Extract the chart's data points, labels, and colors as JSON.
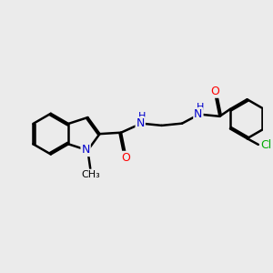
{
  "bg_color": "#ebebeb",
  "bond_color": "#000000",
  "N_color": "#0000cc",
  "O_color": "#ff0000",
  "Cl_color": "#00aa00",
  "bond_width": 1.8,
  "dbo": 0.055,
  "font_size": 8.5,
  "figsize": [
    3.0,
    3.0
  ],
  "dpi": 100,
  "xlim": [
    0,
    10
  ],
  "ylim": [
    0,
    10
  ]
}
